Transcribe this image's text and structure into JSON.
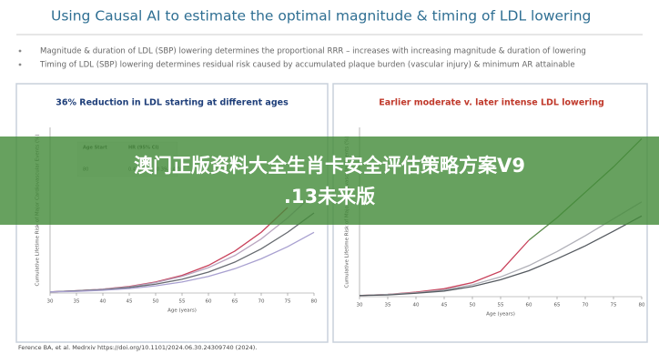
{
  "slide": {
    "title": "Using Causal AI to estimate the optimal magnitude & timing of LDL lowering",
    "bullets": [
      "Magnitude & duration of LDL (SBP) lowering determines the proportional RRR – increases with increasing magnitude & duration of lowering",
      "Timing of LDL (SBP) lowering determines residual risk caused by accumulated plaque burden (vascular injury) & minimum AR attainable"
    ],
    "footnote": "Ference BA, et al. Medrxiv https://doi.org/10.1101/2024.06.30.24309740 (2024)."
  },
  "overlay": {
    "lines": [
      "澳门正版资料大全生肖卡安全评估策略方案V9",
      ".13未来版"
    ]
  },
  "chart_data": [
    {
      "type": "line",
      "title": "36% Reduction in LDL starting at different ages",
      "title_color": "#1f3f7a",
      "x_label": "Age (years)",
      "y_label": "Cumulative Lifetime Risk of Major Cardiovascular Events (%)",
      "x": [
        30,
        35,
        40,
        45,
        50,
        55,
        60,
        65,
        70,
        75,
        80
      ],
      "xlim": [
        30,
        80
      ],
      "xticks": [
        30,
        35,
        40,
        45,
        50,
        55,
        60,
        65,
        70,
        75,
        80
      ],
      "ylim": [
        0,
        30
      ],
      "table": {
        "header": [
          "Age Start",
          "HR (95% CI)"
        ],
        "rows": [
          [
            "80",
            "0.43 (95%): 0.39-0.47)"
          ]
        ]
      },
      "series": [
        {
          "color": "#c8405a",
          "values": [
            0.2,
            0.4,
            0.7,
            1.2,
            2.0,
            3.2,
            5.0,
            7.6,
            11.0,
            15.5,
            null
          ]
        },
        {
          "color": "#b9a6c0",
          "values": [
            0.2,
            0.4,
            0.7,
            1.1,
            1.9,
            3.0,
            4.6,
            6.8,
            9.8,
            13.6,
            18.0
          ]
        },
        {
          "color": "#666a70",
          "values": [
            0.2,
            0.4,
            0.6,
            1.0,
            1.6,
            2.5,
            3.8,
            5.6,
            8.0,
            11.0,
            14.5
          ]
        },
        {
          "color": "#a8a0d0",
          "values": [
            0.2,
            0.3,
            0.5,
            0.8,
            1.3,
            2.0,
            3.0,
            4.4,
            6.2,
            8.4,
            11.0
          ]
        }
      ]
    },
    {
      "type": "line",
      "title": "Earlier moderate v. later intense LDL lowering",
      "title_color": "#c0392b",
      "x_label": "Age (years)",
      "y_label": "Cumulative Lifetime Risk of Major Cardiovascular Events (%)",
      "x": [
        30,
        35,
        40,
        45,
        50,
        55,
        60,
        65,
        70,
        75,
        80
      ],
      "xlim": [
        30,
        80
      ],
      "xticks": [
        30,
        35,
        40,
        45,
        50,
        55,
        60,
        65,
        70,
        75,
        80
      ],
      "ylim": [
        0,
        30
      ],
      "series": [
        {
          "color": "#c8405a",
          "values": [
            0.2,
            0.4,
            0.8,
            1.4,
            2.5,
            4.5,
            10.0,
            null,
            null,
            null,
            null
          ]
        },
        {
          "color": "#5a8a4a",
          "values": [
            null,
            null,
            null,
            null,
            null,
            null,
            10.0,
            14.0,
            18.5,
            23.0,
            28.0
          ]
        },
        {
          "color": "#b0b0b8",
          "values": [
            0.2,
            0.4,
            0.7,
            1.2,
            2.1,
            3.5,
            5.5,
            8.0,
            10.8,
            13.8,
            16.8
          ]
        },
        {
          "color": "#555a60",
          "values": [
            0.2,
            0.3,
            0.6,
            1.0,
            1.8,
            3.0,
            4.6,
            6.7,
            9.0,
            11.6,
            14.3
          ]
        }
      ]
    }
  ]
}
